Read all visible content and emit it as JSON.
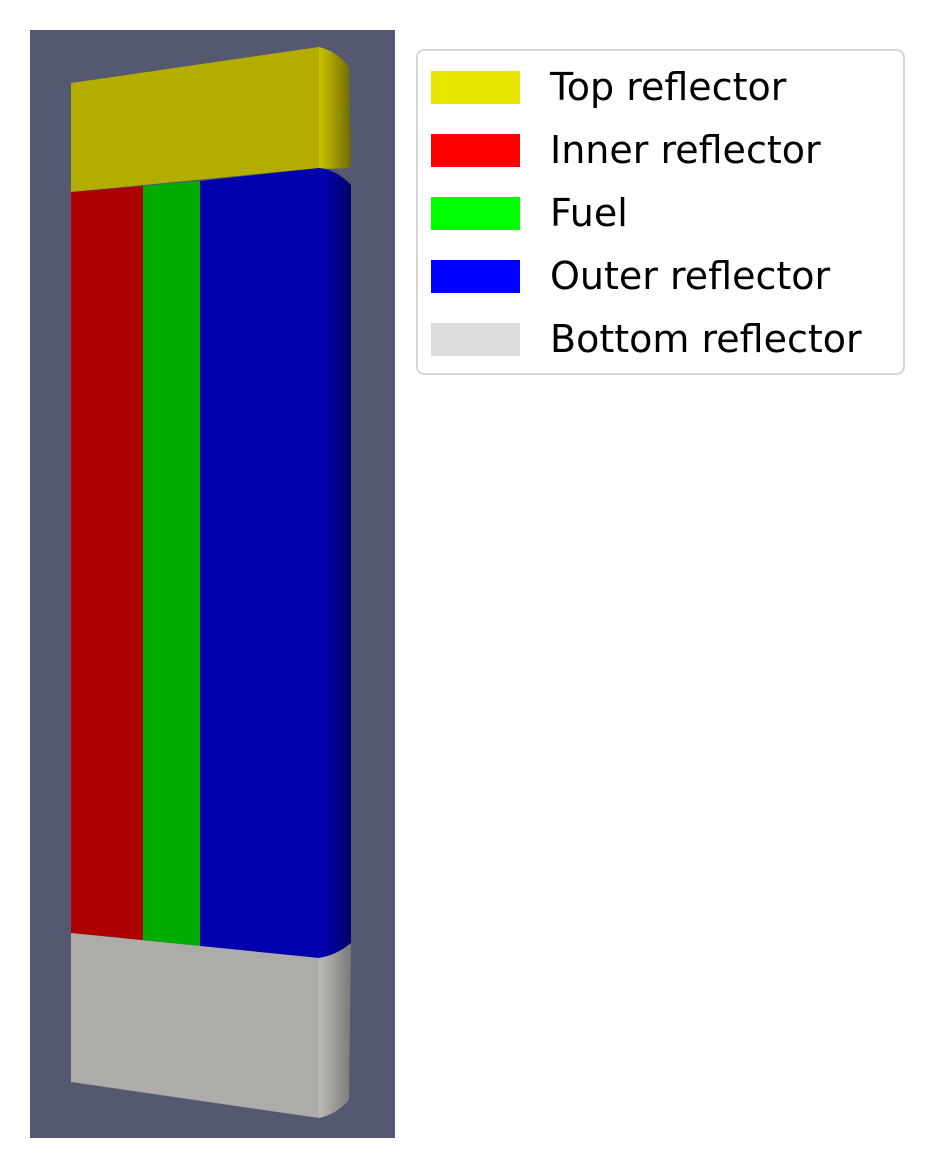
{
  "legend": {
    "items": [
      {
        "label": "Top reflector",
        "color": "#e6e600"
      },
      {
        "label": "Inner reflector",
        "color": "#ff0000"
      },
      {
        "label": "Fuel",
        "color": "#00ff00"
      },
      {
        "label": "Outer reflector",
        "color": "#0000ff"
      },
      {
        "label": "Bottom reflector",
        "color": "#dcdcdc"
      }
    ]
  },
  "colors": {
    "viewport_background": "#545870",
    "top_reflector_shaded": "#b3ad00",
    "inner_reflector_shaded": "#ad0000",
    "fuel_shaded": "#00ad00",
    "outer_reflector_shaded": "#0000ad",
    "bottom_reflector_shaded": "#aeaca8"
  }
}
